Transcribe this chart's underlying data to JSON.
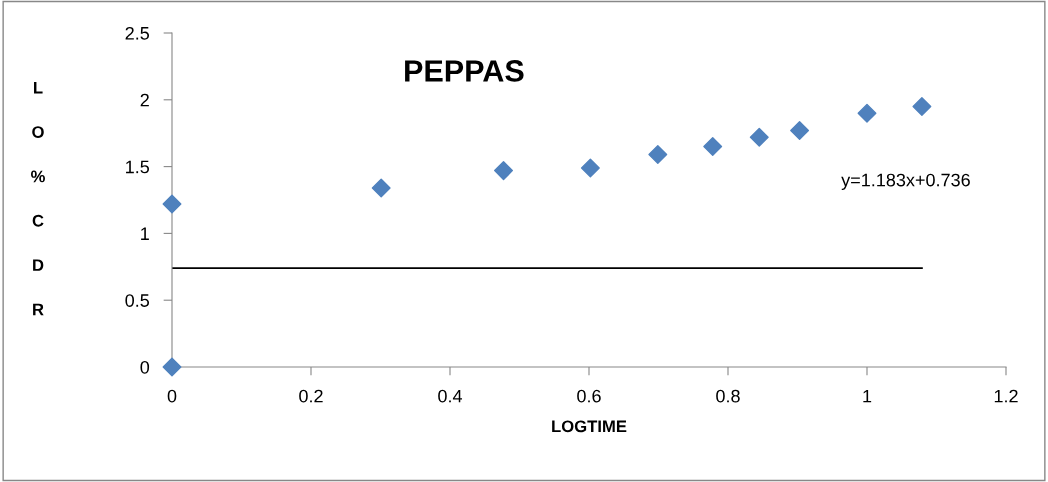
{
  "chart_data": {
    "type": "scatter",
    "title": "PEPPAS",
    "xlabel": "LOGTIME",
    "ylabel": "LO%CDR",
    "x": [
      0,
      0,
      0.301,
      0.477,
      0.602,
      0.699,
      0.778,
      0.845,
      0.903,
      1,
      1.079
    ],
    "series": [
      {
        "color": "#4f81bd",
        "marker": "diamond",
        "values": [
          0,
          1.22,
          1.34,
          1.47,
          1.49,
          1.59,
          1.65,
          1.72,
          1.77,
          1.9,
          1.95
        ]
      },
      {
        "type": "line",
        "color": "#000000",
        "marker": "none",
        "line_style": "solid",
        "x": [
          0,
          1.079
        ],
        "values": [
          0.74,
          0.74
        ]
      }
    ],
    "annotations": [
      "y=1.183x+0.736"
    ],
    "xlim": [
      0,
      1.2
    ],
    "xticks": [
      0,
      0.2,
      0.4,
      0.6,
      0.8,
      1,
      1.2
    ],
    "ylim": [
      0,
      2.5
    ],
    "yticks": [
      0,
      0.5,
      1,
      1.5,
      2,
      2.5
    ],
    "grid": false,
    "legend": false
  }
}
